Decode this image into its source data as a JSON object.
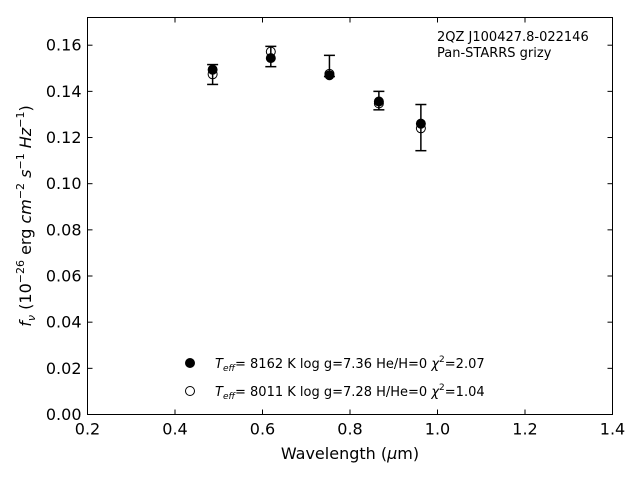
{
  "chart_data": {
    "type": "scatter",
    "annotation": [
      "2QZ J100427.8-022146",
      "Pan-STARRS grizy"
    ],
    "xlabel": "Wavelength (μm)",
    "ylabel": "f_ν (10^-26 erg cm^-2 s^-1 Hz^-1)",
    "xlim": [
      0.2,
      1.4
    ],
    "ylim": [
      0.0,
      0.172
    ],
    "xticks": [
      0.2,
      0.4,
      0.6,
      0.8,
      1.0,
      1.2,
      1.4
    ],
    "xtick_labels": [
      "0.2",
      "0.4",
      "0.6",
      "0.8",
      "1.0",
      "1.2",
      "1.4"
    ],
    "yticks": [
      0.0,
      0.02,
      0.04,
      0.06,
      0.08,
      0.1,
      0.12,
      0.14,
      0.16
    ],
    "ytick_labels": [
      "0.00",
      "0.02",
      "0.04",
      "0.06",
      "0.08",
      "0.10",
      "0.12",
      "0.14",
      "0.16"
    ],
    "grid": false,
    "legend_position": "lower-center",
    "observed": {
      "x": [
        0.486,
        0.619,
        0.753,
        0.866,
        0.962
      ],
      "y": [
        0.1473,
        0.1551,
        0.151,
        0.136,
        0.1243
      ],
      "yerr": [
        0.0043,
        0.0044,
        0.0046,
        0.004,
        0.01
      ]
    },
    "series": [
      {
        "name": "T_eff= 8162 K log g=7.36 He/H=0 χ²=2.07",
        "legend_label": {
          "teff": "8162 K",
          "logg": "log g=7.36",
          "comp": "He/H=0",
          "chi2": "=2.07"
        },
        "marker": "filled-circle",
        "x": [
          0.486,
          0.619,
          0.753,
          0.866,
          0.962
        ],
        "y": [
          0.1494,
          0.1544,
          0.147,
          0.1356,
          0.126
        ]
      },
      {
        "name": "T_eff= 8011 K log g=7.28 H/He=0 χ²=1.04",
        "legend_label": {
          "teff": "8011 K",
          "logg": "log g=7.28",
          "comp": "H/He=0",
          "chi2": "=1.04"
        },
        "marker": "open-circle",
        "x": [
          0.486,
          0.619,
          0.753,
          0.866,
          0.962
        ],
        "y": [
          0.1474,
          0.1572,
          0.1476,
          0.1348,
          0.124
        ]
      }
    ]
  }
}
